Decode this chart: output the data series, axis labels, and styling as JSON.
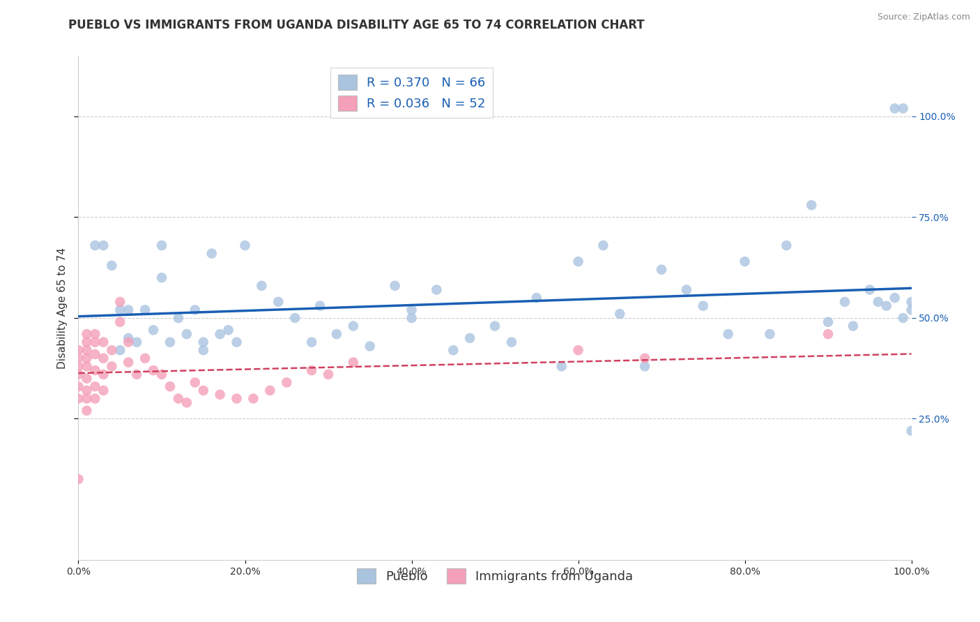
{
  "title": "PUEBLO VS IMMIGRANTS FROM UGANDA DISABILITY AGE 65 TO 74 CORRELATION CHART",
  "source": "Source: ZipAtlas.com",
  "ylabel": "Disability Age 65 to 74",
  "x_tick_labels": [
    "0.0%",
    "20.0%",
    "40.0%",
    "60.0%",
    "80.0%",
    "100.0%"
  ],
  "y_tick_labels": [
    "25.0%",
    "50.0%",
    "75.0%",
    "100.0%"
  ],
  "x_range": [
    0.0,
    1.0
  ],
  "y_range": [
    -0.1,
    1.15
  ],
  "y_ticks": [
    0.25,
    0.5,
    0.75,
    1.0
  ],
  "series1_name": "Pueblo",
  "series2_name": "Immigrants from Uganda",
  "series1_color": "#aac4e0",
  "series2_color": "#f4a0b8",
  "series1_R": 0.37,
  "series1_N": 66,
  "series2_R": 0.036,
  "series2_N": 52,
  "legend_R_color": "#1a5fb4",
  "trendline1_color": "#1a5fb4",
  "trendline2_color": "#d04060",
  "series1_x": [
    0.02,
    0.03,
    0.04,
    0.05,
    0.05,
    0.06,
    0.06,
    0.07,
    0.08,
    0.09,
    0.1,
    0.1,
    0.11,
    0.12,
    0.13,
    0.14,
    0.15,
    0.15,
    0.16,
    0.17,
    0.18,
    0.19,
    0.2,
    0.22,
    0.24,
    0.26,
    0.28,
    0.29,
    0.31,
    0.33,
    0.35,
    0.38,
    0.4,
    0.4,
    0.43,
    0.45,
    0.47,
    0.5,
    0.52,
    0.55,
    0.58,
    0.6,
    0.63,
    0.65,
    0.68,
    0.7,
    0.73,
    0.75,
    0.78,
    0.8,
    0.83,
    0.85,
    0.88,
    0.9,
    0.92,
    0.93,
    0.95,
    0.96,
    0.97,
    0.98,
    0.98,
    0.99,
    0.99,
    1.0,
    1.0,
    1.0
  ],
  "series1_y": [
    0.68,
    0.68,
    0.63,
    0.52,
    0.42,
    0.52,
    0.45,
    0.44,
    0.52,
    0.47,
    0.68,
    0.6,
    0.44,
    0.5,
    0.46,
    0.52,
    0.44,
    0.42,
    0.66,
    0.46,
    0.47,
    0.44,
    0.68,
    0.58,
    0.54,
    0.5,
    0.44,
    0.53,
    0.46,
    0.48,
    0.43,
    0.58,
    0.52,
    0.5,
    0.57,
    0.42,
    0.45,
    0.48,
    0.44,
    0.55,
    0.38,
    0.64,
    0.68,
    0.51,
    0.38,
    0.62,
    0.57,
    0.53,
    0.46,
    0.64,
    0.46,
    0.68,
    0.78,
    0.49,
    0.54,
    0.48,
    0.57,
    0.54,
    0.53,
    0.55,
    1.02,
    1.02,
    0.5,
    0.54,
    0.52,
    0.22
  ],
  "series2_x": [
    0.0,
    0.0,
    0.0,
    0.0,
    0.0,
    0.0,
    0.0,
    0.01,
    0.01,
    0.01,
    0.01,
    0.01,
    0.01,
    0.01,
    0.01,
    0.01,
    0.02,
    0.02,
    0.02,
    0.02,
    0.02,
    0.02,
    0.03,
    0.03,
    0.03,
    0.03,
    0.04,
    0.04,
    0.05,
    0.05,
    0.06,
    0.06,
    0.07,
    0.08,
    0.09,
    0.1,
    0.11,
    0.12,
    0.13,
    0.14,
    0.15,
    0.17,
    0.19,
    0.21,
    0.23,
    0.25,
    0.28,
    0.3,
    0.33,
    0.6,
    0.68,
    0.9
  ],
  "series2_y": [
    0.42,
    0.4,
    0.38,
    0.36,
    0.33,
    0.3,
    0.1,
    0.46,
    0.44,
    0.42,
    0.4,
    0.38,
    0.35,
    0.32,
    0.3,
    0.27,
    0.46,
    0.44,
    0.41,
    0.37,
    0.33,
    0.3,
    0.44,
    0.4,
    0.36,
    0.32,
    0.42,
    0.38,
    0.54,
    0.49,
    0.44,
    0.39,
    0.36,
    0.4,
    0.37,
    0.36,
    0.33,
    0.3,
    0.29,
    0.34,
    0.32,
    0.31,
    0.3,
    0.3,
    0.32,
    0.34,
    0.37,
    0.36,
    0.39,
    0.42,
    0.4,
    0.46
  ],
  "grid_color": "#cccccc",
  "background_color": "#ffffff",
  "title_fontsize": 12,
  "axis_label_fontsize": 11,
  "tick_fontsize": 10,
  "legend_fontsize": 13
}
